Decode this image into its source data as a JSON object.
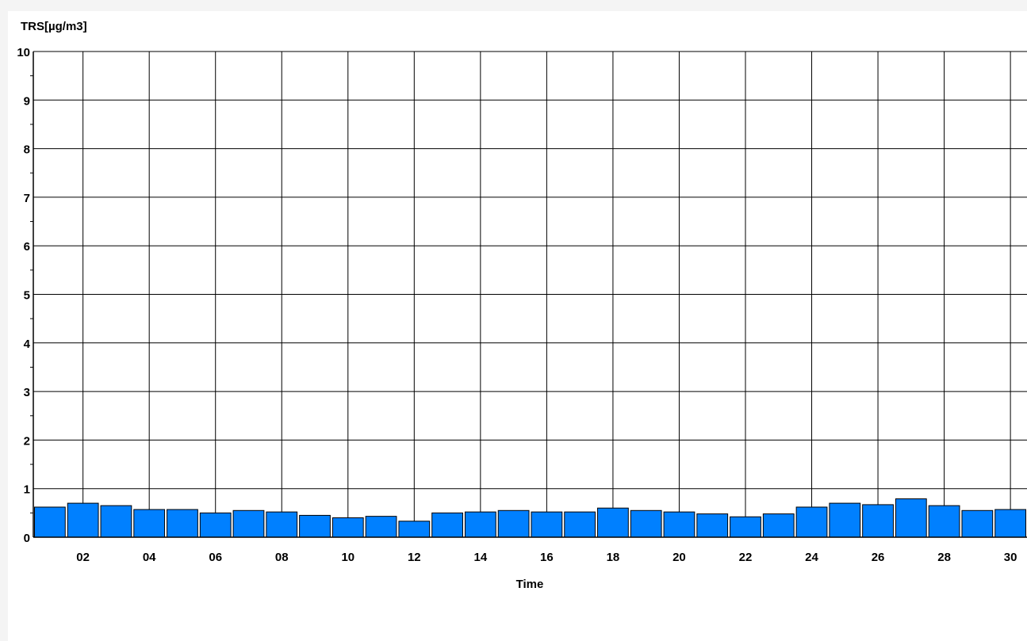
{
  "chart_data": {
    "type": "bar",
    "ylabel": "TRS[µg/m3]",
    "xlabel": "Time",
    "ylim": [
      0,
      10
    ],
    "yticks": [
      "0",
      "1",
      "2",
      "3",
      "4",
      "5",
      "6",
      "7",
      "8",
      "9",
      "10"
    ],
    "x": [
      "01",
      "02",
      "03",
      "04",
      "05",
      "06",
      "07",
      "08",
      "09",
      "10",
      "11",
      "12",
      "13",
      "14",
      "15",
      "16",
      "17",
      "18",
      "19",
      "20",
      "21",
      "22",
      "23",
      "24",
      "25",
      "26",
      "27",
      "28",
      "29",
      "30"
    ],
    "xtick_labels": [
      "02",
      "04",
      "06",
      "08",
      "10",
      "12",
      "14",
      "16",
      "18",
      "20",
      "22",
      "24",
      "26",
      "28",
      "30"
    ],
    "values": [
      0.62,
      0.7,
      0.65,
      0.57,
      0.57,
      0.5,
      0.55,
      0.52,
      0.45,
      0.4,
      0.43,
      0.33,
      0.5,
      0.52,
      0.55,
      0.52,
      0.52,
      0.6,
      0.55,
      0.52,
      0.48,
      0.42,
      0.48,
      0.62,
      0.7,
      0.67,
      0.79,
      0.65,
      0.55,
      0.57
    ],
    "grid": true,
    "bar_color": "#0080ff",
    "bar_edge_color": "#000000"
  }
}
